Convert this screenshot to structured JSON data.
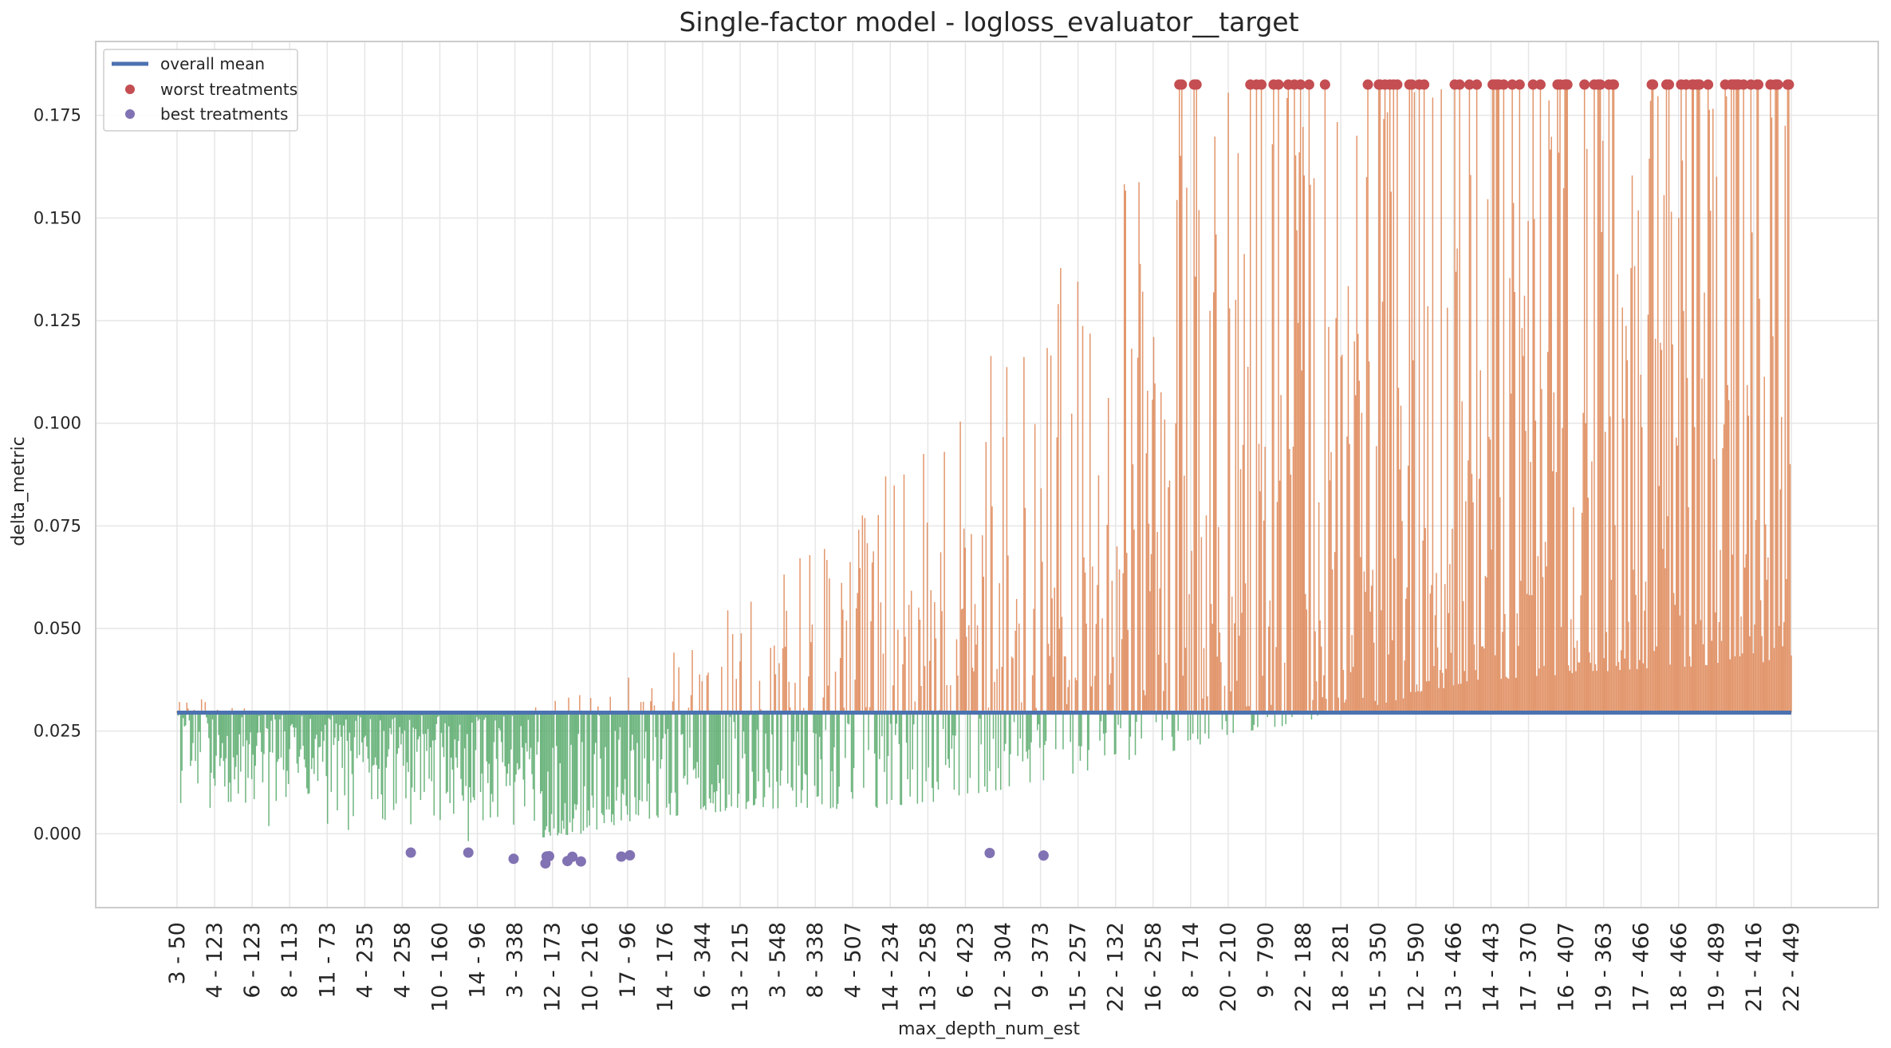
{
  "chart_data": {
    "type": "bar",
    "title": "Single-factor model - logloss_evaluator__target",
    "xlabel": "max_depth_num_est",
    "ylabel": "delta_metric",
    "ylim": [
      -0.018,
      0.193
    ],
    "yticks": [
      0.0,
      0.025,
      0.05,
      0.075,
      0.1,
      0.125,
      0.15,
      0.175
    ],
    "ytick_labels": [
      "0.000",
      "0.025",
      "0.050",
      "0.075",
      "0.100",
      "0.125",
      "0.150",
      "0.175"
    ],
    "overall_mean": 0.0295,
    "worst_value": 0.1825,
    "best_value": -0.005,
    "num_treatments": 1320,
    "grid": true,
    "legend_position": "top-left",
    "xtick_labels": [
      "3 - 50",
      "4 - 123",
      "6 - 123",
      "8 - 113",
      "11 - 73",
      "4 - 235",
      "4 - 258",
      "10 - 160",
      "14 - 96",
      "3 - 338",
      "12 - 173",
      "10 - 216",
      "17 - 96",
      "14 - 176",
      "6 - 344",
      "13 - 215",
      "3 - 548",
      "8 - 338",
      "4 - 507",
      "14 - 234",
      "13 - 258",
      "6 - 423",
      "12 - 304",
      "9 - 373",
      "15 - 257",
      "22 - 132",
      "16 - 258",
      "8 - 714",
      "20 - 210",
      "9 - 790",
      "22 - 188",
      "18 - 281",
      "15 - 350",
      "12 - 590",
      "13 - 466",
      "14 - 443",
      "17 - 370",
      "16 - 407",
      "19 - 363",
      "17 - 466",
      "18 - 466",
      "19 - 489",
      "21 - 416",
      "22 - 449"
    ],
    "envelope": [
      {
        "x": 0.0,
        "lo": 0.006,
        "hi": 0.034
      },
      {
        "x": 0.05,
        "lo": 0.001,
        "hi": 0.03
      },
      {
        "x": 0.1,
        "lo": -0.002,
        "hi": 0.029
      },
      {
        "x": 0.15,
        "lo": -0.003,
        "hi": 0.029
      },
      {
        "x": 0.2,
        "lo": -0.002,
        "hi": 0.029
      },
      {
        "x": 0.25,
        "lo": 0.0,
        "hi": 0.034
      },
      {
        "x": 0.28,
        "lo": 0.003,
        "hi": 0.04
      },
      {
        "x": 0.3,
        "lo": 0.004,
        "hi": 0.045
      },
      {
        "x": 0.33,
        "lo": 0.005,
        "hi": 0.05
      },
      {
        "x": 0.35,
        "lo": 0.006,
        "hi": 0.06
      },
      {
        "x": 0.38,
        "lo": 0.006,
        "hi": 0.068
      },
      {
        "x": 0.4,
        "lo": 0.006,
        "hi": 0.075
      },
      {
        "x": 0.43,
        "lo": 0.006,
        "hi": 0.085
      },
      {
        "x": 0.45,
        "lo": 0.007,
        "hi": 0.095
      },
      {
        "x": 0.48,
        "lo": 0.008,
        "hi": 0.105
      },
      {
        "x": 0.5,
        "lo": 0.01,
        "hi": 0.115
      },
      {
        "x": 0.53,
        "lo": 0.012,
        "hi": 0.128
      },
      {
        "x": 0.55,
        "lo": 0.014,
        "hi": 0.14
      },
      {
        "x": 0.58,
        "lo": 0.017,
        "hi": 0.155
      },
      {
        "x": 0.6,
        "lo": 0.019,
        "hi": 0.165
      },
      {
        "x": 0.63,
        "lo": 0.021,
        "hi": 0.175
      },
      {
        "x": 0.65,
        "lo": 0.024,
        "hi": 0.182
      },
      {
        "x": 0.7,
        "lo": 0.027,
        "hi": 0.182
      },
      {
        "x": 0.75,
        "lo": 0.032,
        "hi": 0.182
      },
      {
        "x": 0.8,
        "lo": 0.037,
        "hi": 0.182
      },
      {
        "x": 0.9,
        "lo": 0.04,
        "hi": 0.182
      },
      {
        "x": 1.0,
        "lo": 0.042,
        "hi": 0.182
      }
    ],
    "series": [
      {
        "name": "overall mean",
        "color": "#4c72b0"
      },
      {
        "name": "worst treatments",
        "color": "#c44e52"
      },
      {
        "name": "best treatments",
        "color": "#8172b3"
      }
    ],
    "bar_colors": {
      "above_mean": "#dd8452",
      "below_mean": "#55a868"
    }
  }
}
